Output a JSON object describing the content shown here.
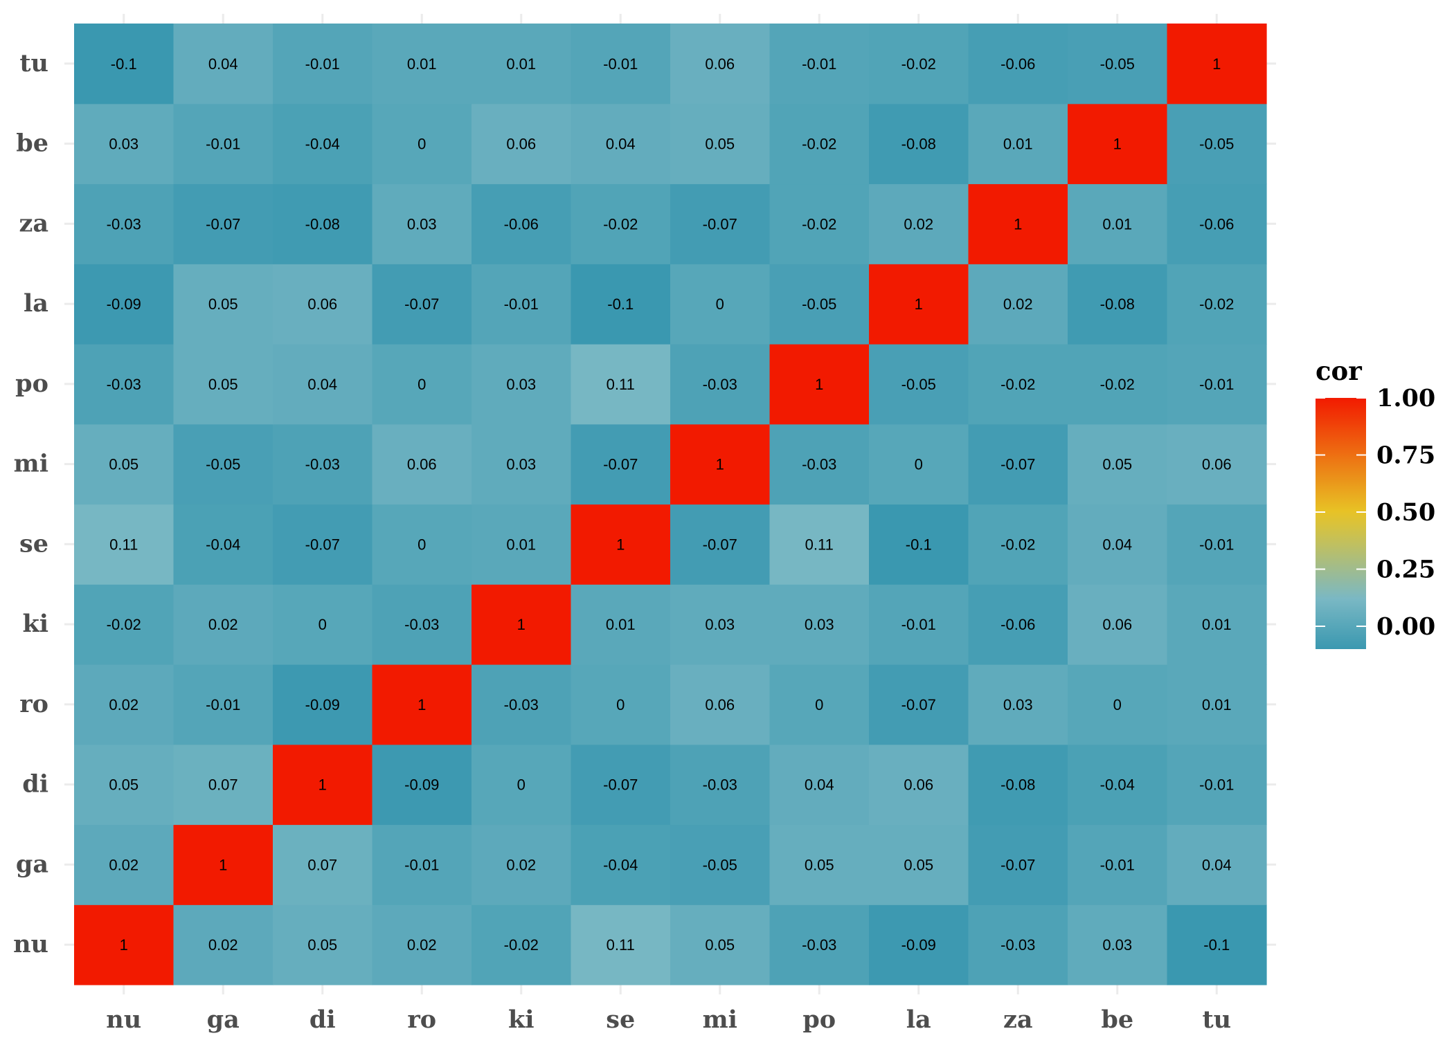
{
  "chart_data": {
    "type": "heatmap",
    "title": "",
    "xlabel": "",
    "ylabel": "",
    "x_categories": [
      "nu",
      "ga",
      "di",
      "ro",
      "ki",
      "se",
      "mi",
      "po",
      "la",
      "za",
      "be",
      "tu"
    ],
    "y_categories": [
      "nu",
      "ga",
      "di",
      "ro",
      "ki",
      "se",
      "mi",
      "po",
      "la",
      "za",
      "be",
      "tu"
    ],
    "matrix": [
      [
        1,
        0.02,
        0.05,
        0.02,
        -0.02,
        0.11,
        0.05,
        -0.03,
        -0.09,
        -0.03,
        0.03,
        -0.1
      ],
      [
        0.02,
        1,
        0.07,
        -0.01,
        0.02,
        -0.04,
        -0.05,
        0.05,
        0.05,
        -0.07,
        -0.01,
        0.04
      ],
      [
        0.05,
        0.07,
        1,
        -0.09,
        0,
        -0.07,
        -0.03,
        0.04,
        0.06,
        -0.08,
        -0.04,
        -0.01
      ],
      [
        0.02,
        -0.01,
        -0.09,
        1,
        -0.03,
        0,
        0.06,
        0,
        -0.07,
        0.03,
        0,
        0.01
      ],
      [
        -0.02,
        0.02,
        0,
        -0.03,
        1,
        0.01,
        0.03,
        0.03,
        -0.01,
        -0.06,
        0.06,
        0.01
      ],
      [
        0.11,
        -0.04,
        -0.07,
        0,
        0.01,
        1,
        -0.07,
        0.11,
        -0.1,
        -0.02,
        0.04,
        -0.01
      ],
      [
        0.05,
        -0.05,
        -0.03,
        0.06,
        0.03,
        -0.07,
        1,
        -0.03,
        0,
        -0.07,
        0.05,
        0.06
      ],
      [
        -0.03,
        0.05,
        0.04,
        0,
        0.03,
        0.11,
        -0.03,
        1,
        -0.05,
        -0.02,
        -0.02,
        -0.01
      ],
      [
        -0.09,
        0.05,
        0.06,
        -0.07,
        -0.01,
        -0.1,
        0,
        -0.05,
        1,
        0.02,
        -0.08,
        -0.02
      ],
      [
        -0.03,
        -0.07,
        -0.08,
        0.03,
        -0.06,
        -0.02,
        -0.07,
        -0.02,
        0.02,
        1,
        0.01,
        -0.06
      ],
      [
        0.03,
        -0.01,
        -0.04,
        0,
        0.06,
        0.04,
        0.05,
        -0.02,
        -0.08,
        0.01,
        1,
        -0.05
      ],
      [
        -0.1,
        0.04,
        -0.01,
        0.01,
        0.01,
        -0.01,
        0.06,
        -0.01,
        -0.02,
        -0.06,
        -0.05,
        1
      ]
    ],
    "legend": {
      "title": "cor",
      "placement": "right",
      "range": [
        -0.1,
        1
      ],
      "ticks": [
        {
          "value": 0,
          "label": "0.00"
        },
        {
          "value": 0.25,
          "label": "0.25"
        },
        {
          "value": 0.5,
          "label": "0.50"
        },
        {
          "value": 0.75,
          "label": "0.75"
        },
        {
          "value": 1,
          "label": "1.00"
        }
      ]
    },
    "grid": true,
    "colors": {
      "low": "#3a98b0",
      "mid": "#7ab8c4",
      "yellow": "#e8c425",
      "high": "#f21a00",
      "grid": "#ebebeb"
    }
  }
}
